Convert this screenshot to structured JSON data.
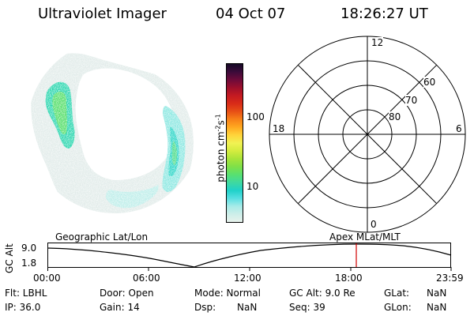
{
  "header": {
    "title": "Ultraviolet Imager",
    "date": "04 Oct 07",
    "time": "18:26:27 UT"
  },
  "colorbar": {
    "label": "photon cm",
    "label_sup1": "-2",
    "label_s": "s",
    "label_sup2": "-1",
    "tick_100": "100",
    "tick_10": "10",
    "colors": [
      "#e8f2ec",
      "#cdeee9",
      "#a6ebe8",
      "#57dfe2",
      "#1fd1c9",
      "#3fd9a0",
      "#58e070",
      "#7fe048",
      "#a9e43a",
      "#d4ec3f",
      "#f1f253",
      "#ffd43b",
      "#ffa820",
      "#f78018",
      "#e74f16",
      "#d82b18",
      "#c41a22",
      "#9d0f2c",
      "#6d0b3a",
      "#3b0b3a",
      "#160a26"
    ]
  },
  "polar": {
    "label_top": "12",
    "label_bottom": "0",
    "label_left": "18",
    "label_right": "6",
    "ring_60": "60",
    "ring_70": "70",
    "ring_80": "80"
  },
  "timeline": {
    "left_title": "Geographic Lat/Lon",
    "right_title": "Apex  MLat/MLT",
    "axis_label": "GC Alt",
    "y_max": "9.0",
    "y_min": "1.8",
    "ticks": [
      "00:00",
      "06:00",
      "12:00",
      "18:00",
      "23:59"
    ],
    "marker_color": "#d00000",
    "marker_time": "18:26:27"
  },
  "info": {
    "row1": {
      "filter": "Flt: LBHL",
      "door": "Door: Open",
      "mode": "Mode: Normal",
      "gc_alt": "GC Alt: 9.0 Re",
      "glat_label": "GLat:",
      "glat_value": "NaN"
    },
    "row2": {
      "ip": "IP: 36.0",
      "gain": "Gain: 14",
      "dsp_label": "Dsp:",
      "dsp_value": "NaN",
      "seq": "Seq: 39",
      "glon_label": "GLon:",
      "glon_value": "NaN"
    }
  }
}
